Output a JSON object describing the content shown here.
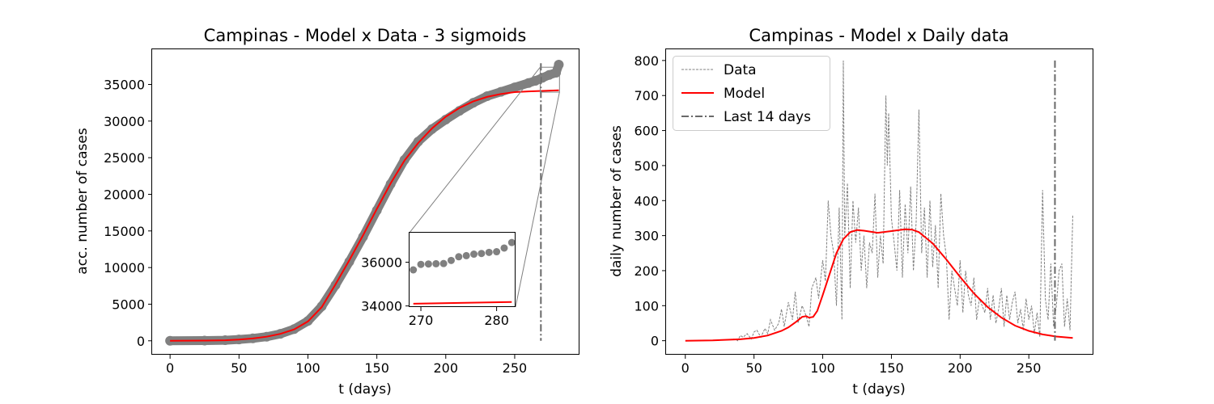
{
  "chart_data": [
    {
      "type": "scatter",
      "title": "Campinas - Model x Data - 3 sigmoids",
      "xlabel": "t (days)",
      "ylabel": "acc. number of cases",
      "xlim": [
        -13,
        297
      ],
      "ylim": [
        -1900,
        39800
      ],
      "xticks": [
        0,
        50,
        100,
        150,
        200,
        250
      ],
      "yticks": [
        0,
        5000,
        10000,
        15000,
        20000,
        25000,
        30000,
        35000
      ],
      "data_color": "#808080",
      "model_color": "#ff0000",
      "last14_day": 269,
      "data": {
        "t": [
          0,
          25,
          40,
          50,
          60,
          70,
          80,
          90,
          100,
          110,
          120,
          130,
          140,
          150,
          160,
          170,
          180,
          190,
          200,
          210,
          220,
          230,
          240,
          250,
          260,
          265,
          270,
          275,
          280,
          282
        ],
        "y": [
          0,
          30,
          80,
          180,
          330,
          560,
          950,
          1600,
          2700,
          4700,
          7600,
          10800,
          14200,
          17800,
          21400,
          24700,
          27200,
          28900,
          30200,
          31400,
          32500,
          33400,
          34000,
          34600,
          35200,
          35500,
          35900,
          36300,
          36600,
          37700
        ]
      },
      "model": {
        "t": [
          0,
          25,
          40,
          50,
          60,
          70,
          80,
          90,
          100,
          110,
          120,
          130,
          140,
          150,
          160,
          170,
          180,
          190,
          200,
          210,
          220,
          230,
          240,
          250,
          260,
          270,
          282
        ],
        "y": [
          0,
          30,
          80,
          170,
          320,
          560,
          950,
          1550,
          2650,
          4600,
          7700,
          11000,
          14400,
          18000,
          21500,
          24600,
          27000,
          29000,
          30600,
          31800,
          32700,
          33300,
          33700,
          33950,
          34050,
          34120,
          34200
        ]
      },
      "inset": {
        "xlim": [
          268.5,
          282.5
        ],
        "ylim": [
          33950,
          37350
        ],
        "xticks": [
          270,
          280
        ],
        "yticks": [
          34000,
          36000
        ],
        "data": {
          "t": [
            269,
            270,
            271,
            272,
            273,
            274,
            275,
            276,
            277,
            278,
            279,
            280,
            281,
            282
          ],
          "y": [
            35650,
            35900,
            35920,
            35930,
            35940,
            36080,
            36250,
            36300,
            36370,
            36400,
            36450,
            36480,
            36650,
            36900
          ]
        },
        "model": {
          "t": [
            269,
            282
          ],
          "y": [
            34100,
            34180
          ]
        }
      }
    },
    {
      "type": "line",
      "title": "Campinas - Model x Daily data",
      "xlabel": "t (days)",
      "ylabel": "daily number of cases",
      "xlim": [
        -14,
        297
      ],
      "ylim": [
        -40,
        832
      ],
      "xticks": [
        0,
        50,
        100,
        150,
        200,
        250
      ],
      "yticks": [
        0,
        100,
        200,
        300,
        400,
        500,
        600,
        700,
        800
      ],
      "legend": {
        "position": "top-left",
        "entries": [
          {
            "label": "Data",
            "color": "#808080",
            "style": "dashed"
          },
          {
            "label": "Model",
            "color": "#ff0000",
            "style": "solid"
          },
          {
            "label": "Last 14 days",
            "color": "#696969",
            "style": "dashdot"
          }
        ]
      },
      "last14_day": 269,
      "data": {
        "t": [
          35,
          38,
          40,
          42,
          45,
          48,
          50,
          52,
          55,
          58,
          60,
          62,
          65,
          68,
          70,
          72,
          75,
          78,
          80,
          82,
          85,
          88,
          90,
          92,
          95,
          97,
          100,
          102,
          104,
          106,
          108,
          110,
          112,
          114,
          115,
          116,
          118,
          120,
          122,
          124,
          126,
          128,
          130,
          132,
          134,
          136,
          138,
          140,
          142,
          144,
          146,
          147,
          148,
          150,
          152,
          154,
          156,
          158,
          160,
          162,
          164,
          166,
          168,
          170,
          172,
          174,
          176,
          178,
          180,
          182,
          184,
          186,
          188,
          190,
          192,
          194,
          196,
          198,
          200,
          202,
          204,
          206,
          208,
          210,
          212,
          214,
          216,
          218,
          220,
          222,
          224,
          226,
          228,
          230,
          232,
          234,
          236,
          238,
          240,
          242,
          244,
          246,
          248,
          250,
          252,
          254,
          256,
          258,
          260,
          262,
          264,
          266,
          268,
          270,
          272,
          274,
          276,
          278,
          280,
          282
        ],
        "y": [
          5,
          0,
          15,
          10,
          20,
          5,
          25,
          30,
          10,
          35,
          20,
          60,
          30,
          50,
          90,
          40,
          110,
          60,
          140,
          50,
          100,
          70,
          40,
          150,
          180,
          120,
          230,
          170,
          400,
          300,
          250,
          100,
          380,
          60,
          800,
          300,
          450,
          150,
          400,
          280,
          380,
          200,
          300,
          150,
          280,
          250,
          420,
          180,
          300,
          220,
          700,
          500,
          650,
          350,
          280,
          200,
          430,
          180,
          390,
          250,
          440,
          200,
          340,
          660,
          250,
          380,
          180,
          400,
          210,
          330,
          150,
          420,
          300,
          240,
          60,
          200,
          150,
          100,
          230,
          80,
          200,
          130,
          100,
          180,
          60,
          120,
          100,
          80,
          150,
          60,
          130,
          50,
          90,
          150,
          40,
          130,
          60,
          110,
          140,
          50,
          90,
          30,
          120,
          60,
          100,
          20,
          80,
          10,
          430,
          120,
          60,
          220,
          40,
          100,
          200,
          220,
          40,
          120,
          30,
          360
        ]
      },
      "model": {
        "t": [
          0,
          20,
          40,
          50,
          60,
          70,
          75,
          80,
          85,
          88,
          90,
          93,
          96,
          100,
          105,
          110,
          115,
          120,
          125,
          130,
          140,
          150,
          160,
          165,
          170,
          180,
          190,
          200,
          210,
          220,
          230,
          240,
          250,
          260,
          270,
          282
        ],
        "y": [
          0,
          1,
          4,
          8,
          15,
          28,
          38,
          52,
          68,
          70,
          66,
          68,
          85,
          130,
          190,
          250,
          290,
          310,
          316,
          314,
          308,
          313,
          318,
          317,
          310,
          278,
          232,
          182,
          135,
          96,
          66,
          43,
          28,
          18,
          12,
          8
        ]
      }
    }
  ]
}
